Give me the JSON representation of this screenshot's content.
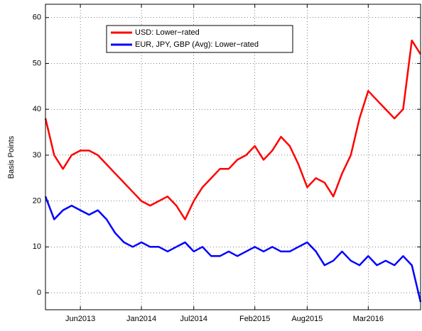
{
  "chart_data": {
    "type": "line",
    "ylabel": "Basis Points",
    "x": [
      "Feb2013",
      "Mar2013",
      "Apr2013",
      "May2013",
      "Jun2013",
      "Jul2013",
      "Aug2013",
      "Sep2013",
      "Oct2013",
      "Nov2013",
      "Dec2013",
      "Jan2014",
      "Feb2014",
      "Mar2014",
      "Apr2014",
      "May2014",
      "Jun2014",
      "Jul2014",
      "Aug2014",
      "Sep2014",
      "Oct2014",
      "Nov2014",
      "Dec2014",
      "Jan2015",
      "Feb2015",
      "Mar2015",
      "Apr2015",
      "May2015",
      "Jun2015",
      "Jul2015",
      "Aug2015",
      "Sep2015",
      "Oct2015",
      "Nov2015",
      "Dec2015",
      "Jan2016",
      "Feb2016",
      "Mar2016",
      "Apr2016",
      "May2016",
      "Jun2016",
      "Jul2016",
      "Aug2016",
      "Sep2016"
    ],
    "series": [
      {
        "name": "USD: Lower−rated",
        "color": "#ff0000",
        "values": [
          38,
          30,
          27,
          30,
          31,
          31,
          30,
          28,
          26,
          24,
          22,
          20,
          19,
          20,
          21,
          19,
          16,
          20,
          23,
          25,
          27,
          27,
          29,
          30,
          32,
          29,
          31,
          34,
          32,
          28,
          23,
          25,
          24,
          21,
          26,
          30,
          38,
          44,
          42,
          40,
          38,
          40,
          55,
          52
        ]
      },
      {
        "name": "EUR, JPY, GBP (Avg): Lower−rated",
        "color": "#0000ff",
        "values": [
          21,
          16,
          18,
          19,
          18,
          17,
          18,
          16,
          13,
          11,
          10,
          11,
          10,
          10,
          9,
          10,
          11,
          9,
          10,
          8,
          8,
          9,
          8,
          9,
          10,
          9,
          10,
          9,
          9,
          10,
          11,
          9,
          6,
          7,
          9,
          7,
          6,
          8,
          6,
          7,
          6,
          8,
          6,
          -2
        ]
      }
    ],
    "xticks": [
      "Jun2013",
      "Jan2014",
      "Jul2014",
      "Feb2015",
      "Aug2015",
      "Mar2016"
    ],
    "ylim": [
      -3.7,
      62.9
    ],
    "yticks": [
      0,
      10,
      20,
      30,
      40,
      50,
      60
    ],
    "grid": true,
    "legend": "upper left"
  }
}
